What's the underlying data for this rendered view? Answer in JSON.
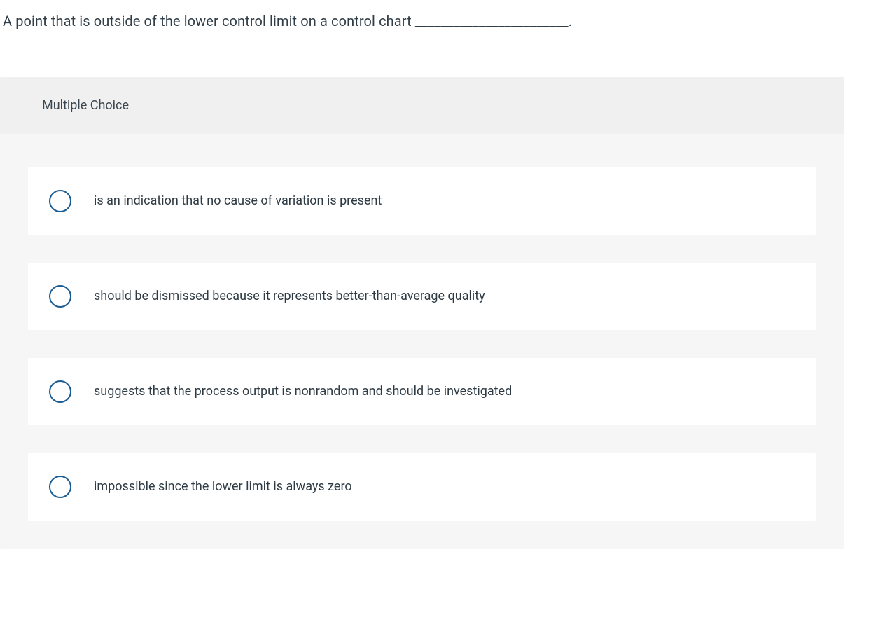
{
  "question": {
    "text": "A point that is outside of the lower control limit on a control chart ________________________."
  },
  "panel": {
    "header": "Multiple Choice",
    "options": [
      {
        "label": "is an indication that no cause of variation is present"
      },
      {
        "label": "should be dismissed because it represents better-than-average quality"
      },
      {
        "label": "suggests that the process output is nonrandom and should be investigated"
      },
      {
        "label": "impossible since the lower limit is always zero"
      }
    ]
  },
  "colors": {
    "radio_border": "#1a5b92",
    "card_bg": "#ffffff",
    "panel_bg": "#f6f6f6",
    "header_bg": "#f0f0f0",
    "text": "#2f3b44"
  }
}
